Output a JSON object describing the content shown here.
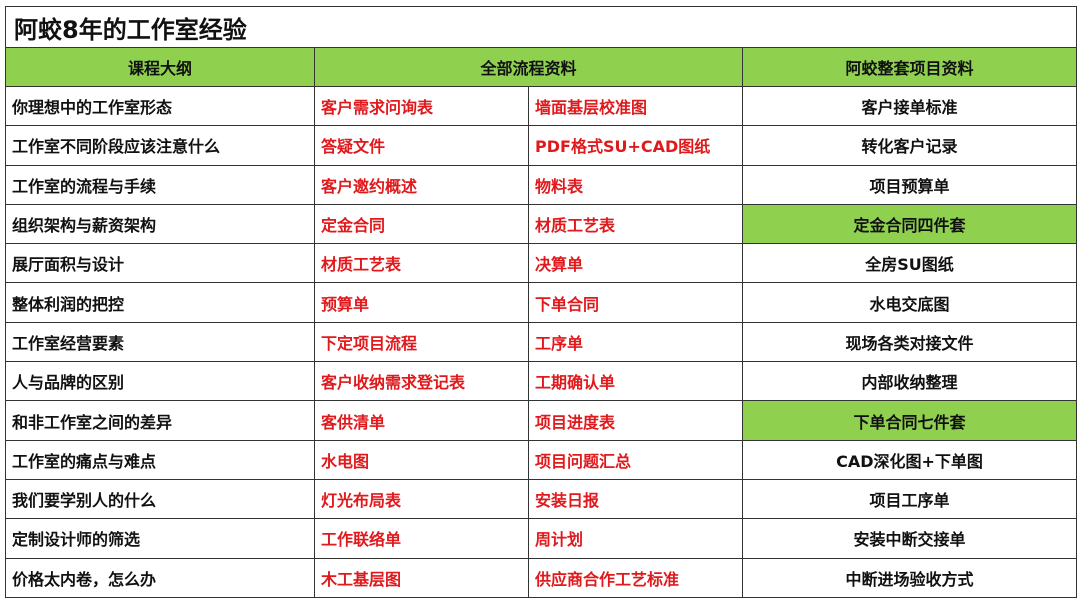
{
  "colors": {
    "green": "#8fd14f",
    "red": "#e0191c"
  },
  "title": "阿蛟8年的工作室经验",
  "headers": [
    "课程大纲",
    "全部流程资料",
    "阿蛟整套项目资料"
  ],
  "rows": [
    {
      "outline": "你理想中的工作室形态",
      "flow_a": "客户需求问询表",
      "flow_b": "墙面基层校准图",
      "project": "客户接单标准",
      "highlight": false
    },
    {
      "outline": "工作室不同阶段应该注意什么",
      "flow_a": "答疑文件",
      "flow_b": "PDF格式SU+CAD图纸",
      "project": "转化客户记录",
      "highlight": false
    },
    {
      "outline": "工作室的流程与手续",
      "flow_a": "客户邀约概述",
      "flow_b": "物料表",
      "project": "项目预算单",
      "highlight": false
    },
    {
      "outline": "组织架构与薪资架构",
      "flow_a": "定金合同",
      "flow_b": "材质工艺表",
      "project": "定金合同四件套",
      "highlight": true
    },
    {
      "outline": "展厅面积与设计",
      "flow_a": "材质工艺表",
      "flow_b": "决算单",
      "project": "全房SU图纸",
      "highlight": false
    },
    {
      "outline": "整体利润的把控",
      "flow_a": "预算单",
      "flow_b": "下单合同",
      "project": "水电交底图",
      "highlight": false
    },
    {
      "outline": "工作室经营要素",
      "flow_a": "下定项目流程",
      "flow_b": "工序单",
      "project": "现场各类对接文件",
      "highlight": false
    },
    {
      "outline": "人与品牌的区别",
      "flow_a": "客户收纳需求登记表",
      "flow_b": "工期确认单",
      "project": "内部收纳整理",
      "highlight": false
    },
    {
      "outline": "和非工作室之间的差异",
      "flow_a": "客供清单",
      "flow_b": "项目进度表",
      "project": "下单合同七件套",
      "highlight": true
    },
    {
      "outline": "工作室的痛点与难点",
      "flow_a": "水电图",
      "flow_b": "项目问题汇总",
      "project": "CAD深化图+下单图",
      "highlight": false
    },
    {
      "outline": "我们要学别人的什么",
      "flow_a": "灯光布局表",
      "flow_b": "安装日报",
      "project": "项目工序单",
      "highlight": false
    },
    {
      "outline": "定制设计师的筛选",
      "flow_a": "工作联络单",
      "flow_b": "周计划",
      "project": "安装中断交接单",
      "highlight": false
    },
    {
      "outline": "价格太内卷，怎么办",
      "flow_a": "木工基层图",
      "flow_b": "供应商合作工艺标准",
      "project": "中断进场验收方式",
      "highlight": false
    }
  ]
}
